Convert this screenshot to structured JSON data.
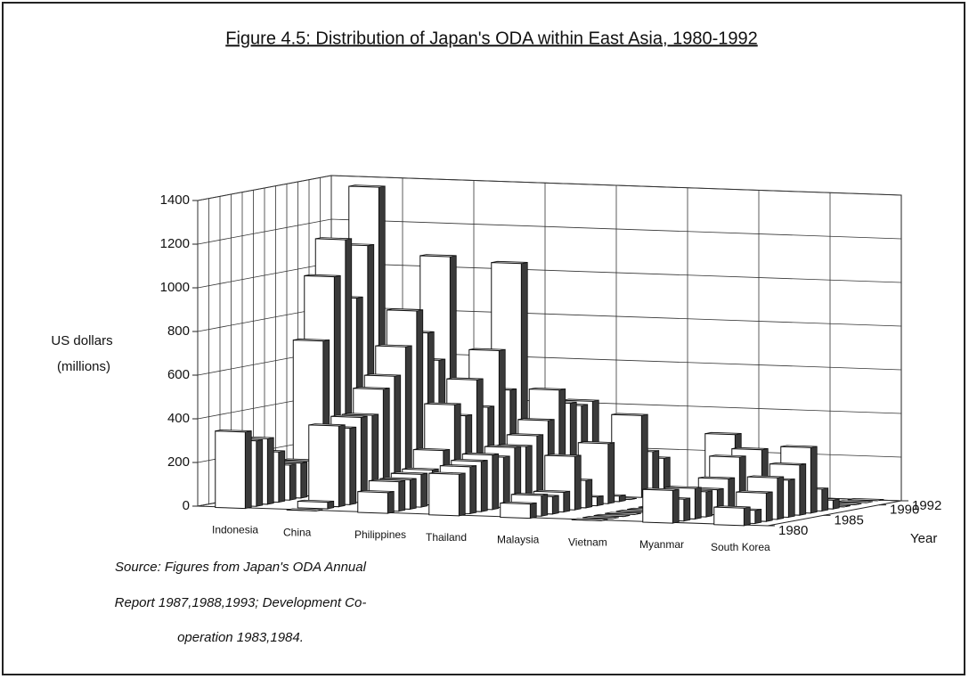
{
  "chart_data": {
    "type": "bar",
    "title": "Figure 4.5:  Distribution of Japan's ODA within East Asia, 1980-1992",
    "ylabel": [
      "US dollars",
      "(millions)"
    ],
    "zlabel": "Year",
    "source": [
      "Source: Figures from Japan's ODA Annual",
      "Report 1987,1988,1993; Development Co-",
      "operation 1983,1984."
    ],
    "categories": [
      "Indonesia",
      "China",
      "Philippines",
      "Thailand",
      "Malaysia",
      "Vietnam",
      "Myanmar",
      "South Korea"
    ],
    "z": [
      1980,
      1981,
      1982,
      1983,
      1984,
      1985,
      1986,
      1987,
      1988,
      1989,
      1990,
      1991,
      1992
    ],
    "zlim": [
      1980,
      1992
    ],
    "zticks": [
      1980,
      1985,
      1990,
      1992
    ],
    "ylim": [
      0,
      1400
    ],
    "yticks": [
      0,
      200,
      400,
      600,
      800,
      1000,
      1200,
      1400
    ],
    "grid": true,
    "color": "#ffffff",
    "side_color": "#3a3a3a",
    "series": [
      {
        "values": [
          350,
          0,
          95,
          190,
          65,
          0,
          150,
          80
        ]
      },
      {
        "values": [
          300,
          30,
          135,
          215,
          95,
          0,
          100,
          60
        ]
      },
      {
        "values": [
          300,
          370,
          135,
          230,
          80,
          0,
          140,
          130
        ]
      },
      {
        "values": [
          230,
          350,
          150,
          250,
          90,
          0,
          115,
          190
        ]
      },
      {
        "values": [
          160,
          390,
          160,
          230,
          245,
          0,
          115,
          170
        ]
      },
      {
        "values": [
          160,
          390,
          240,
          265,
          125,
          0,
          155,
          230
        ]
      },
      {
        "values": [
          160,
          500,
          440,
          260,
          40,
          0,
          245,
          300
        ]
      },
      {
        "values": [
          700,
          550,
          380,
          300,
          275,
          0,
          70,
          100
        ]
      },
      {
        "values": [
          985,
          675,
          535,
          360,
          25,
          0,
          260,
          40
        ]
      },
      {
        "values": [
          1145,
          830,
          400,
          490,
          0,
          0,
          70,
          0
        ]
      },
      {
        "values": [
          868,
          720,
          650,
          420,
          375,
          0,
          60,
          0
        ]
      },
      {
        "values": [
          1099,
          585,
          460,
          400,
          200,
          0,
          85,
          0
        ]
      },
      {
        "values": [
          1357,
          1050,
          1030,
          410,
          160,
          280,
          70,
          0
        ]
      }
    ]
  }
}
